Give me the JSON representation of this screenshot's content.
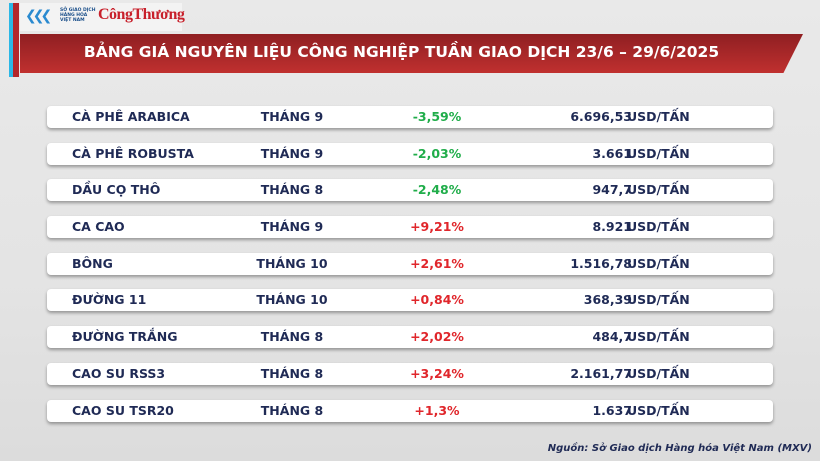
{
  "header": {
    "logo_text": "SỞ GIAO DỊCH HÀNG HÓA VIỆT NAM",
    "brand": "CôngThương",
    "title": "BẢNG GIÁ NGUYÊN LIỆU CÔNG NGHIỆP TUẦN GIAO DỊCH 23/6 – 29/6/2025"
  },
  "colors": {
    "negative": "#20ad4a",
    "positive": "#e0262b",
    "banner": "#b3262b",
    "text": "#1f2a55"
  },
  "rows": [
    {
      "name": "CÀ PHÊ ARABICA",
      "month": "THÁNG 9",
      "change": "-3,59%",
      "price": "6.696,53",
      "unit": "USD/TẤN"
    },
    {
      "name": "CÀ PHÊ ROBUSTA",
      "month": "THÁNG 9",
      "change": "-2,03%",
      "price": "3.661",
      "unit": "USD/TẤN"
    },
    {
      "name": "DẦU CỌ THÔ",
      "month": "THÁNG 8",
      "change": "-2,48%",
      "price": "947,7",
      "unit": "USD/TẤN"
    },
    {
      "name": "CA CAO",
      "month": "THÁNG 9",
      "change": "+9,21%",
      "price": "8.921",
      "unit": "USD/TẤN"
    },
    {
      "name": "BÔNG",
      "month": "THÁNG 10",
      "change": "+2,61%",
      "price": "1.516,78",
      "unit": "USD/TẤN"
    },
    {
      "name": "ĐƯỜNG 11",
      "month": "THÁNG 10",
      "change": "+0,84%",
      "price": "368,39",
      "unit": "USD/TẤN"
    },
    {
      "name": "ĐƯỜNG TRẮNG",
      "month": "THÁNG 8",
      "change": "+2,02%",
      "price": "484,7",
      "unit": "USD/TẤN"
    },
    {
      "name": "CAO SU RSS3",
      "month": "THÁNG 8",
      "change": "+3,24%",
      "price": "2.161,77",
      "unit": "USD/TẤN"
    },
    {
      "name": "CAO SU TSR20",
      "month": "THÁNG 8",
      "change": "+1,3%",
      "price": "1.637",
      "unit": "USD/TẤN"
    }
  ],
  "source": "Nguồn: Sở Giao dịch Hàng hóa Việt Nam (MXV)"
}
